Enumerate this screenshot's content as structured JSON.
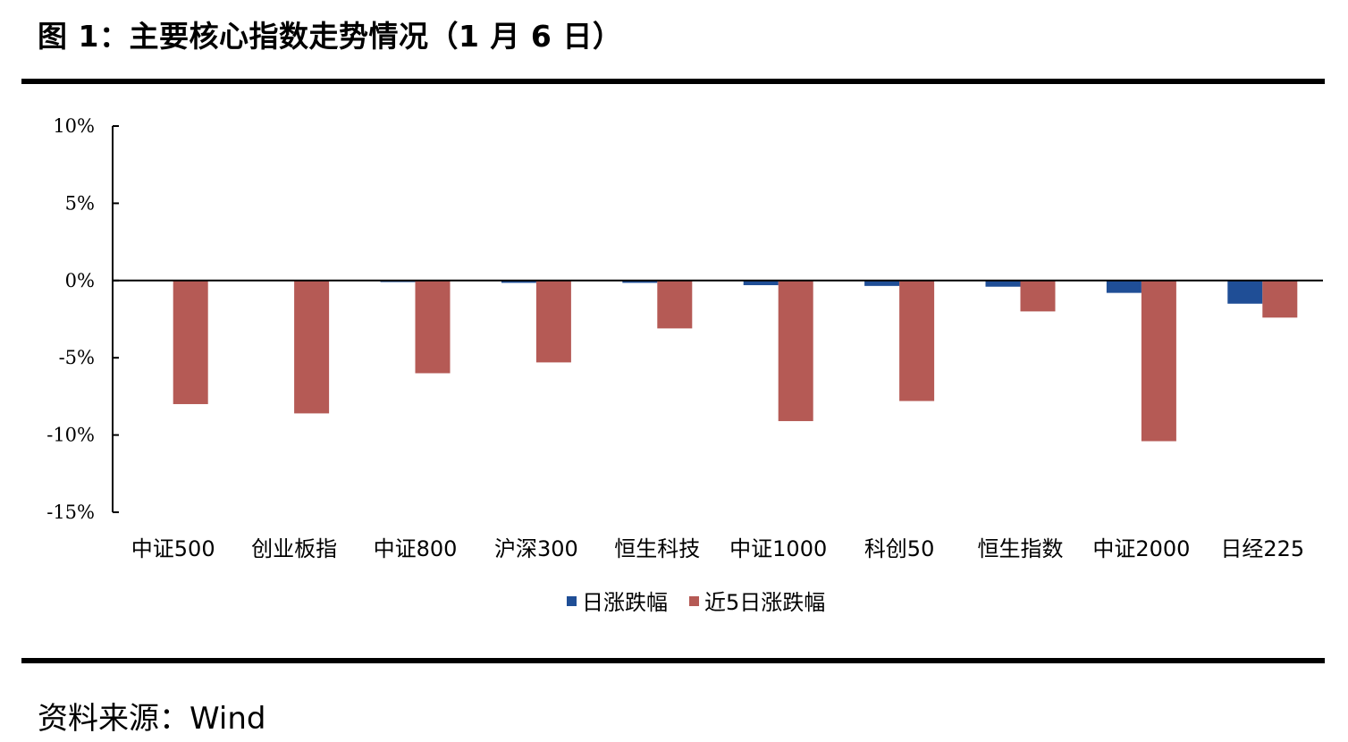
{
  "figure": {
    "title": "图 1：主要核心指数走势情况（1 月 6 日）",
    "source": "资料来源：Wind"
  },
  "colors": {
    "daily": "#1f4e96",
    "five_day": "#b55a55",
    "axis": "#000000"
  },
  "chart_data": {
    "type": "bar",
    "title": "",
    "xlabel": "",
    "ylabel": "",
    "categories": [
      "中证500",
      "创业板指",
      "中证800",
      "沪深300",
      "恒生科技",
      "中证1000",
      "科创50",
      "恒生指数",
      "中证2000",
      "日经225"
    ],
    "series": [
      {
        "name": "日涨跌幅",
        "values": [
          0.0,
          0.0,
          -0.1,
          -0.15,
          -0.15,
          -0.3,
          -0.35,
          -0.4,
          -0.8,
          -1.5
        ]
      },
      {
        "name": "近5日涨跌幅",
        "values": [
          -8.0,
          -8.6,
          -6.0,
          -5.3,
          -3.1,
          -9.1,
          -7.8,
          -2.0,
          -10.4,
          -2.4
        ]
      }
    ],
    "ylim": [
      -15,
      10
    ],
    "yticks": [
      10,
      5,
      0,
      -5,
      -10,
      -15
    ],
    "ytick_labels": [
      "10%",
      "5%",
      "0%",
      "-5%",
      "-10%",
      "-15%"
    ],
    "grid": false,
    "legend": "bottom-center"
  }
}
